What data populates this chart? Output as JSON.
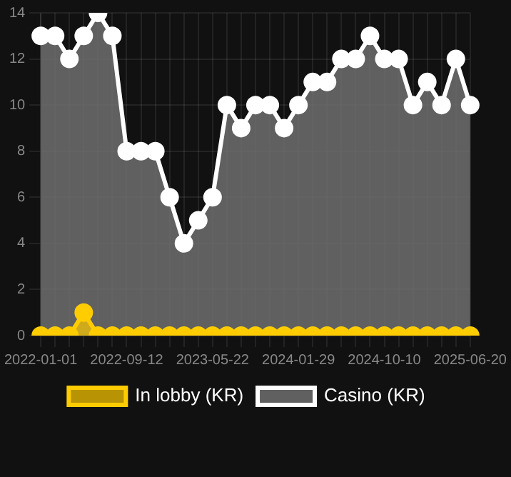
{
  "chart_data": {
    "type": "area",
    "categories": [
      "2022-01-01",
      null,
      null,
      null,
      null,
      null,
      "2022-09-12",
      null,
      null,
      null,
      null,
      null,
      "2023-05-22",
      null,
      null,
      null,
      null,
      null,
      "2024-01-29",
      null,
      null,
      null,
      null,
      null,
      "2024-10-10",
      null,
      null,
      null,
      null,
      null,
      "2025-06-20"
    ],
    "series": [
      {
        "name": "In lobby (KR)",
        "color": "#ffcc00",
        "values": [
          0,
          0,
          0,
          1,
          0,
          0,
          0,
          0,
          0,
          0,
          0,
          0,
          0,
          0,
          0,
          0,
          0,
          0,
          0,
          0,
          0,
          0,
          0,
          0,
          0,
          0,
          0,
          0,
          0,
          0,
          0
        ]
      },
      {
        "name": "Casino (KR)",
        "color": "#ffffff",
        "values": [
          13,
          13,
          12,
          13,
          14,
          13,
          8,
          8,
          8,
          6,
          4,
          5,
          6,
          10,
          9,
          10,
          10,
          9,
          10,
          11,
          11,
          12,
          12,
          13,
          12,
          12,
          10,
          11,
          10,
          12,
          10
        ]
      }
    ],
    "ylim": [
      0,
      14
    ],
    "yticks": [
      0,
      2,
      4,
      6,
      8,
      10,
      12,
      14
    ],
    "grid": true,
    "legend": "bottom",
    "marker": "circle"
  }
}
